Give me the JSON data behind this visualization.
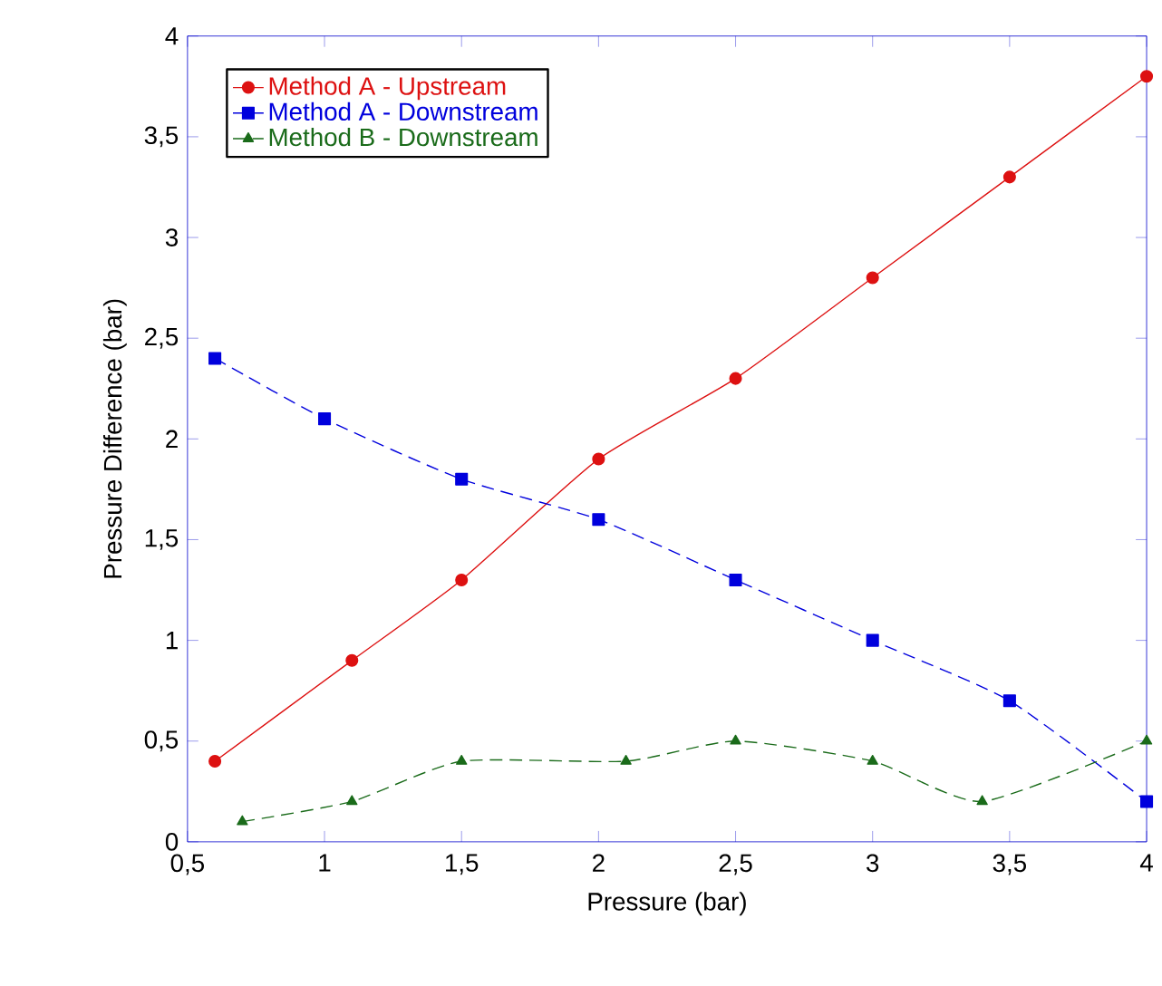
{
  "chart_data": {
    "type": "line",
    "xlabel": "Pressure (bar)",
    "ylabel": "Pressure Difference (bar)",
    "xlim": [
      0.5,
      4
    ],
    "ylim": [
      0,
      4
    ],
    "xticks": [
      {
        "value": 0.5,
        "label": "0,5"
      },
      1,
      {
        "value": 1.5,
        "label": "1,5"
      },
      2,
      {
        "value": 2.5,
        "label": "2,5"
      },
      3,
      {
        "value": 3.5,
        "label": "3,5"
      },
      4
    ],
    "yticks": [
      0,
      {
        "value": 0.5,
        "label": "0,5"
      },
      1,
      {
        "value": 1.5,
        "label": "1,5"
      },
      2,
      {
        "value": 2.5,
        "label": "2,5"
      },
      3,
      {
        "value": 3.5,
        "label": "3,5"
      },
      4
    ],
    "grid": false,
    "legend": "top left",
    "series": [
      {
        "name": "Method A - Upstream",
        "color": "#dd1111",
        "marker": "circle",
        "line_style": "solid",
        "x": [
          0.6,
          1.1,
          1.5,
          2,
          2.5,
          3,
          3.5,
          4
        ],
        "values": [
          0.4,
          0.9,
          1.3,
          1.9,
          2.3,
          2.8,
          3.3,
          3.8
        ]
      },
      {
        "name": "Method A - Downstream",
        "color": "#0000dd",
        "marker": "square",
        "line_style": "dashed",
        "x": [
          0.6,
          1,
          1.5,
          2,
          2.5,
          3,
          3.5,
          4
        ],
        "values": [
          2.4,
          2.1,
          1.8,
          1.6,
          1.3,
          1.0,
          0.7,
          0.2
        ]
      },
      {
        "name": "Method B - Downstream",
        "color": "#1a6b1a",
        "marker": "triangle",
        "line_style": "dashed",
        "x": [
          0.7,
          1.1,
          1.5,
          2.1,
          2.5,
          3,
          3.4,
          4
        ],
        "values": [
          0.1,
          0.2,
          0.4,
          0.4,
          0.5,
          0.4,
          0.2,
          0.5
        ]
      }
    ]
  }
}
